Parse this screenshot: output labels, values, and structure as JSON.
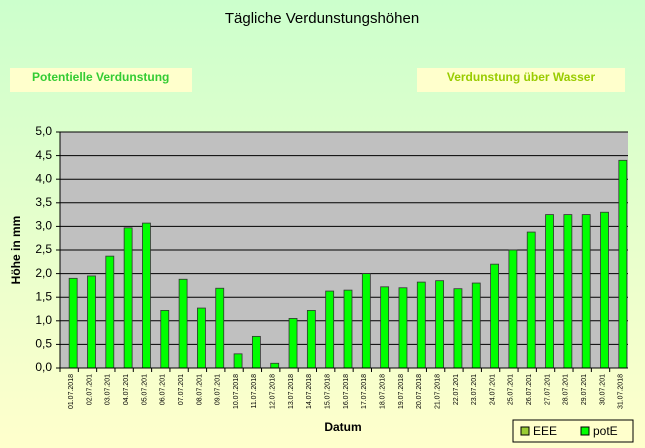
{
  "chart_data": {
    "type": "bar",
    "title": "Tägliche Verdunstungshöhen",
    "annotations": [
      "Potentielle Verdunstung",
      "Verdunstung über Wasser"
    ],
    "xlabel": "Datum",
    "ylabel": "Höhe in mm",
    "categories": [
      "01.07.2018",
      "02.07.201",
      "03.07.201",
      "04.07.201",
      "05.07.201",
      "06.07.201",
      "07.07.201",
      "08.07.201",
      "09.07.201",
      "10.07.2018",
      "11.07.2018",
      "12.07.2018",
      "13.07.2018",
      "14.07.2018",
      "15.07.2018",
      "16.07.2018",
      "17.07.2018",
      "18.07.2018",
      "19.07.2018",
      "20.07.2018",
      "21.07.2018",
      "22.07.201",
      "23.07.201",
      "24.07.201",
      "25.07.201",
      "26.07.201",
      "27.07.201",
      "28.07.201",
      "29.07.201",
      "30.07.201",
      "31.07.2018"
    ],
    "series": [
      {
        "name": "EEE",
        "color": "#99cc33",
        "values": [
          null,
          null,
          null,
          null,
          null,
          null,
          null,
          null,
          null,
          null,
          null,
          null,
          null,
          null,
          null,
          null,
          null,
          null,
          null,
          null,
          null,
          null,
          null,
          null,
          null,
          null,
          null,
          null,
          null,
          null,
          null
        ]
      },
      {
        "name": "potE",
        "color": "#00ff00",
        "values": [
          1.9,
          1.95,
          2.37,
          2.97,
          3.07,
          1.22,
          1.88,
          1.27,
          1.69,
          0.3,
          0.67,
          0.1,
          1.05,
          1.22,
          1.63,
          1.65,
          2.0,
          1.72,
          1.7,
          1.82,
          1.85,
          1.68,
          1.8,
          2.2,
          2.5,
          2.88,
          3.25,
          3.25,
          3.25,
          3.3,
          4.4
        ]
      }
    ],
    "ylim": [
      0,
      5
    ],
    "yticks": [
      {
        "value": 0,
        "label": "0,0"
      },
      {
        "value": 0.5,
        "label": "0,5"
      },
      {
        "value": 1,
        "label": "1,0"
      },
      {
        "value": 1.5,
        "label": "1,5"
      },
      {
        "value": 2,
        "label": "2,0"
      },
      {
        "value": 2.5,
        "label": "2,5"
      },
      {
        "value": 3,
        "label": "3,0"
      },
      {
        "value": 3.5,
        "label": "3,5"
      },
      {
        "value": 4,
        "label": "4,0"
      },
      {
        "value": 4.5,
        "label": "4,5"
      },
      {
        "value": 5,
        "label": "5,0"
      }
    ],
    "grid": true,
    "legend": "bottom-right"
  }
}
